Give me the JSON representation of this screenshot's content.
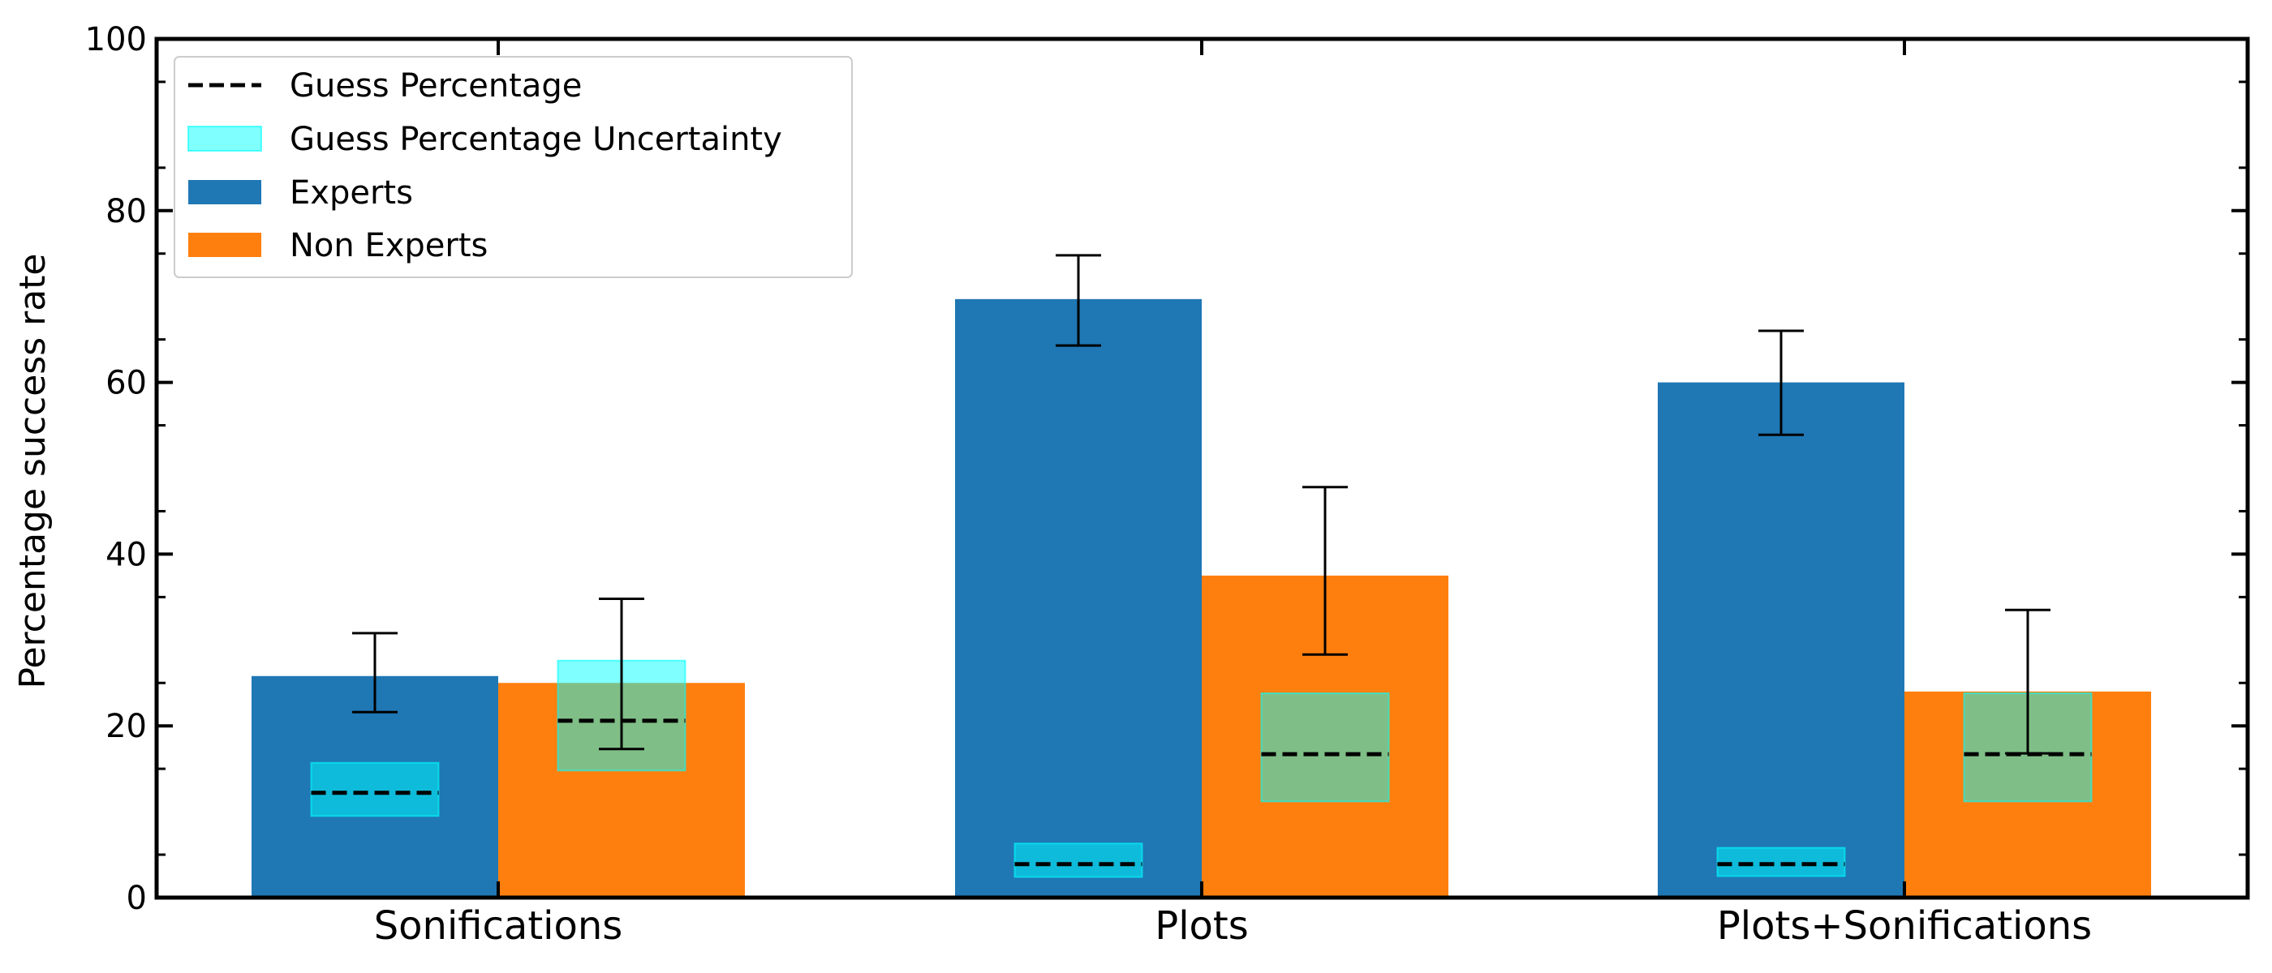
{
  "chart_data": {
    "type": "bar",
    "title": "",
    "xlabel": "",
    "ylabel": "Percentage success rate",
    "ylim": [
      0,
      100
    ],
    "yticks": [
      "0",
      "20",
      "40",
      "60",
      "80",
      "100"
    ],
    "categories": [
      "Sonifications",
      "Plots",
      "Plots+Sonifications"
    ],
    "series": [
      {
        "name": "Experts",
        "color": "#1f77b4",
        "values": [
          25.8,
          69.7,
          60.0
        ],
        "error_low": [
          21.6,
          64.3,
          53.9
        ],
        "error_high": [
          30.8,
          74.8,
          66.0
        ],
        "guess": [
          12.2,
          3.9,
          3.9
        ],
        "guess_uncertainty": [
          [
            9.5,
            15.7
          ],
          [
            2.4,
            6.3
          ],
          [
            2.5,
            5.8
          ]
        ]
      },
      {
        "name": "Non Experts",
        "color": "#ff7f0e",
        "values": [
          25.0,
          37.5,
          24.0
        ],
        "error_low": [
          17.3,
          28.3,
          16.8
        ],
        "error_high": [
          34.8,
          47.8,
          33.5
        ],
        "guess": [
          20.6,
          16.7,
          16.7
        ],
        "guess_uncertainty": [
          [
            14.8,
            27.6
          ],
          [
            11.2,
            23.8
          ],
          [
            11.2,
            23.8
          ]
        ]
      }
    ],
    "legend": {
      "placement": "upper-left",
      "entries": [
        {
          "label": "Guess Percentage",
          "style": "dashed-line",
          "color": "#000000"
        },
        {
          "label": "Guess Percentage Uncertainty",
          "style": "patch",
          "color": "#00ffff"
        },
        {
          "label": "Experts",
          "style": "patch",
          "color": "#1f77b4"
        },
        {
          "label": "Non Experts",
          "style": "patch",
          "color": "#ff7f0e"
        }
      ]
    },
    "uncertainty_color": "#00ffff",
    "guess_line_color": "#000000",
    "grid": false
  }
}
